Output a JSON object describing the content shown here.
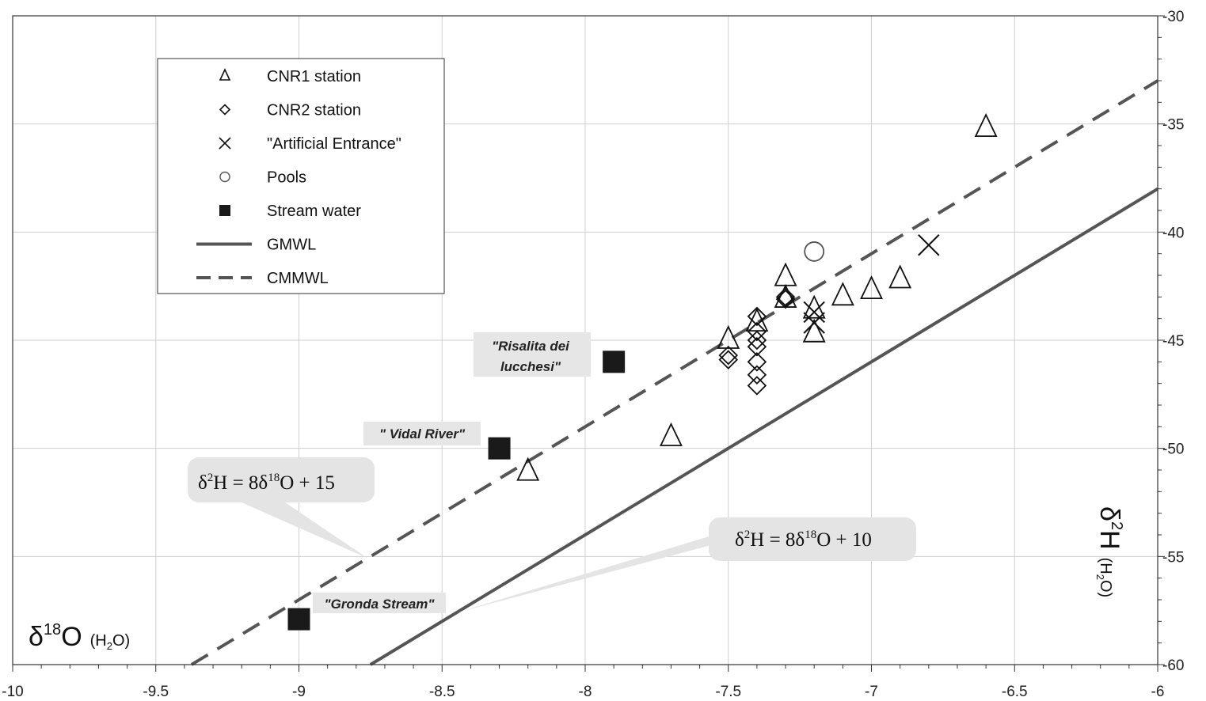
{
  "chart_data": {
    "type": "scatter",
    "xlim": [
      -10,
      -6
    ],
    "ylim": [
      -60,
      -30
    ],
    "x_ticks": [
      -10,
      -9.5,
      -9,
      -8.5,
      -8,
      -7.5,
      -7,
      -6.5,
      -6
    ],
    "x_tick_labels": [
      "-10",
      "-9.5",
      "-9",
      "-8.5",
      "-8",
      "-7.5",
      "-7",
      "-6.5",
      "-6"
    ],
    "y_ticks": [
      -30,
      -35,
      -40,
      -45,
      -50,
      -55,
      -60
    ],
    "y_tick_labels": [
      "-30",
      "-35",
      "-40",
      "-45",
      "-50",
      "-55",
      "-60"
    ],
    "y_axis_side": "right",
    "grid": true,
    "xlabel": {
      "main": "δ",
      "sup": "18",
      "tail": "O",
      "sub_pre": "(H",
      "sub_num": "2",
      "sub_post": "O)"
    },
    "ylabel": {
      "main": "δ",
      "sup": "2",
      "tail": "H",
      "sub_pre": "(H",
      "sub_num": "2",
      "sub_post": "O)"
    },
    "legend_position": "top-left",
    "series": [
      {
        "name": "CNR1 station",
        "marker": "triangle",
        "color": "#111111",
        "points": [
          [
            -6.6,
            -35.2
          ],
          [
            -7.3,
            -42.1
          ],
          [
            -7.3,
            -43.1
          ],
          [
            -7.2,
            -43.6
          ],
          [
            -7.2,
            -44.7
          ],
          [
            -7.1,
            -43.0
          ],
          [
            -7.0,
            -42.7
          ],
          [
            -6.9,
            -42.2
          ],
          [
            -7.5,
            -45.0
          ],
          [
            -7.4,
            -44.2
          ],
          [
            -7.7,
            -49.5
          ],
          [
            -8.2,
            -51.1
          ]
        ]
      },
      {
        "name": "CNR2 station",
        "marker": "diamond",
        "color": "#111111",
        "points": [
          [
            -7.5,
            -45.7
          ],
          [
            -7.5,
            -45.9
          ],
          [
            -7.4,
            -43.9
          ],
          [
            -7.4,
            -44.6
          ],
          [
            -7.4,
            -45.0
          ],
          [
            -7.4,
            -45.3
          ],
          [
            -7.4,
            -46.0
          ],
          [
            -7.4,
            -46.6
          ],
          [
            -7.4,
            -47.1
          ],
          [
            -7.3,
            -43.0
          ],
          [
            -7.3,
            -43.1
          ]
        ]
      },
      {
        "name": "\"Artificial Entrance\"",
        "marker": "cross",
        "color": "#111111",
        "points": [
          [
            -6.8,
            -40.6
          ],
          [
            -7.2,
            -43.7
          ],
          [
            -7.2,
            -44.2
          ]
        ]
      },
      {
        "name": "Pools",
        "marker": "circle",
        "color": "#555555",
        "points": [
          [
            -7.2,
            -40.9
          ]
        ]
      },
      {
        "name": "Stream water",
        "marker": "square",
        "color": "#1a1a1a",
        "points": [
          [
            -7.9,
            -46.0
          ],
          [
            -8.3,
            -50.0
          ],
          [
            -9.0,
            -57.9
          ]
        ]
      },
      {
        "name": "GMWL",
        "type": "line",
        "style": "solid",
        "color": "#555555",
        "slope": 8,
        "intercept": 10
      },
      {
        "name": "CMMWL",
        "type": "line",
        "style": "dashed",
        "color": "#555555",
        "slope": 8,
        "intercept": 15
      }
    ],
    "callouts": [
      {
        "eq": {
          "a": "δ",
          "b": "2",
          "c": "H = 8δ",
          "d": "18",
          "e": "O + 15"
        },
        "line": "CMMWL"
      },
      {
        "eq": {
          "a": "δ",
          "b": "2",
          "c": "H = 8δ",
          "d": "18",
          "e": "O + 10"
        },
        "line": "GMWL"
      }
    ],
    "annotations": [
      {
        "text": "\"Risalita dei",
        "text2": "lucchesi\""
      },
      {
        "text": "\" Vidal River\""
      },
      {
        "text": "\"Gronda Stream\""
      }
    ]
  }
}
